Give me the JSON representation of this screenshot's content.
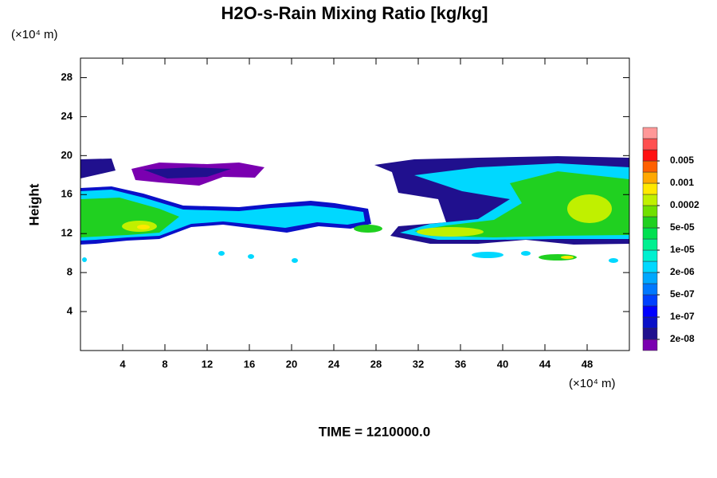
{
  "chart_data": {
    "type": "contour",
    "title": "H2O-s-Rain Mixing Ratio [kg/kg]",
    "y_unit": "(×10⁴ m)",
    "x_unit": "(×10⁴ m)",
    "ylabel": "Height",
    "footer": "TIME = 1210000.0",
    "xlim": [
      0,
      52
    ],
    "ylim": [
      0,
      30
    ],
    "xticks": [
      4,
      8,
      12,
      16,
      20,
      24,
      28,
      32,
      36,
      40,
      44,
      48
    ],
    "yticks": [
      4,
      8,
      12,
      16,
      20,
      24,
      28
    ],
    "colorbar": {
      "colors": [
        "#7a00b0",
        "#20108e",
        "#0a10c8",
        "#0000ff",
        "#0040ff",
        "#0078ff",
        "#00a8ff",
        "#00d8ff",
        "#00f0d0",
        "#00f090",
        "#00e050",
        "#20d020",
        "#70e000",
        "#c0f000",
        "#ffe800",
        "#ffa800",
        "#ff6000",
        "#ff1010",
        "#ff5050",
        "#ff9898"
      ],
      "ticks": [
        {
          "value": 2e-08,
          "label": "2e-08"
        },
        {
          "value": 1e-07,
          "label": "1e-07"
        },
        {
          "value": 5e-07,
          "label": "5e-07"
        },
        {
          "value": 2e-06,
          "label": "2e-06"
        },
        {
          "value": 1e-05,
          "label": "1e-05"
        },
        {
          "value": 5e-05,
          "label": "5e-05"
        },
        {
          "value": 0.0002,
          "label": "0.0002"
        },
        {
          "value": 0.001,
          "label": "0.001"
        },
        {
          "value": 0.005,
          "label": "0.005"
        }
      ]
    }
  }
}
